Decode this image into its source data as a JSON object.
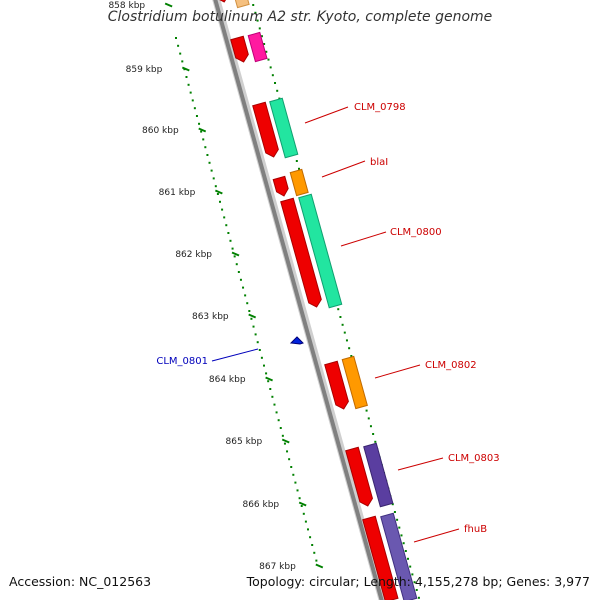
{
  "title": "Clostridium botulinum A2 str. Kyoto, complete genome",
  "footer": {
    "accession": "Accession: NC_012563",
    "stats": "Topology: circular; Length: 4,155,278 bp; Genes: 3,977"
  },
  "colors": {
    "backbone": "#8a8a8a",
    "scale_dots": "#008000",
    "gene_label": "#cc0000",
    "feature_label": "#0000bb"
  },
  "scale": {
    "unit": "kbp",
    "ticks": [
      "858 kbp",
      "859 kbp",
      "860 kbp",
      "861 kbp",
      "862 kbp",
      "863 kbp",
      "864 kbp",
      "865 kbp",
      "866 kbp",
      "867 kbp"
    ]
  },
  "gene_labels": [
    "CLM_0798",
    "blaI",
    "CLM_0800",
    "CLM_0802",
    "CLM_0803",
    "fhuB"
  ],
  "feature_label": "CLM_0801"
}
